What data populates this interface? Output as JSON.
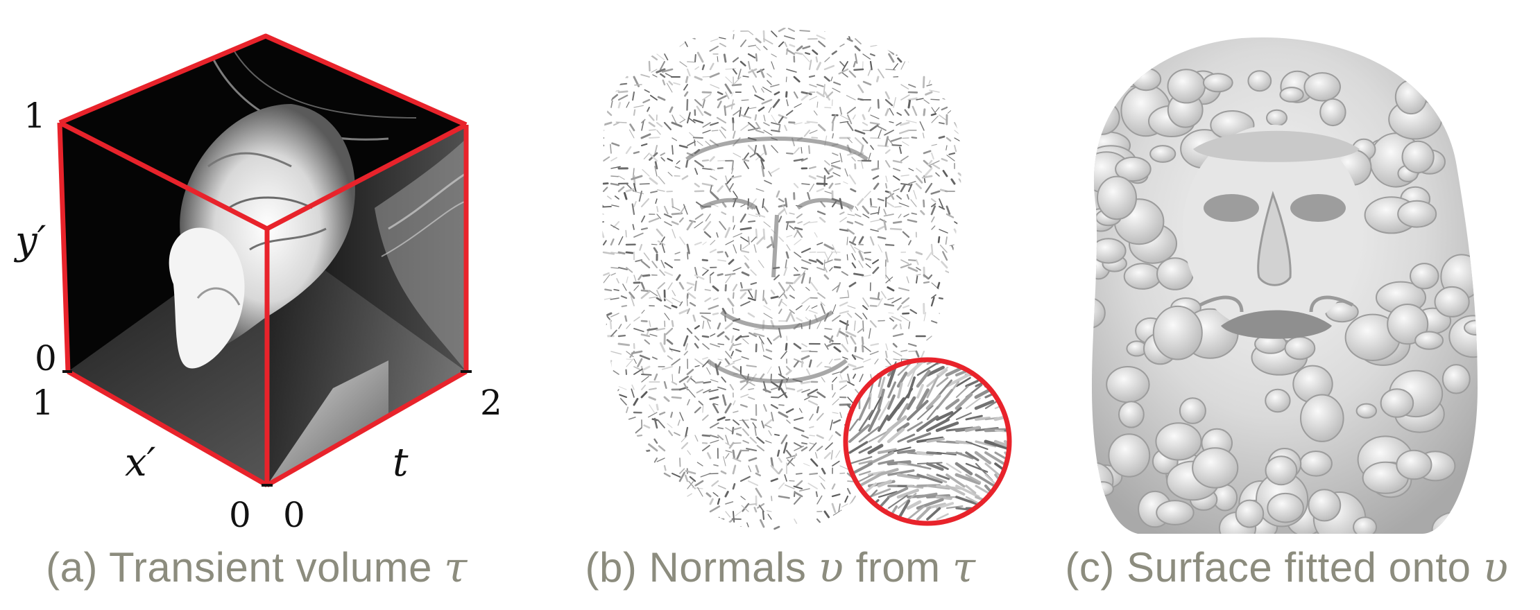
{
  "panels": {
    "a": {
      "caption_prefix": "(a) Transient volume ",
      "caption_symbol": "τ",
      "axes": {
        "y_label": "y′",
        "x_label": "x′",
        "t_label": "t",
        "y_top": "1",
        "y_bottom": "0",
        "x_left": "1",
        "x_bottom": "0",
        "t_bottom": "0",
        "t_right": "2"
      },
      "edge_color": "#e8232b"
    },
    "b": {
      "caption_prefix": "(b) Normals ",
      "caption_symbol": "υ",
      "caption_mid": " from ",
      "caption_symbol2": "τ",
      "inset_color": "#e8232b"
    },
    "c": {
      "caption_prefix": "(c) Surface fitted onto ",
      "caption_symbol": "υ"
    }
  }
}
